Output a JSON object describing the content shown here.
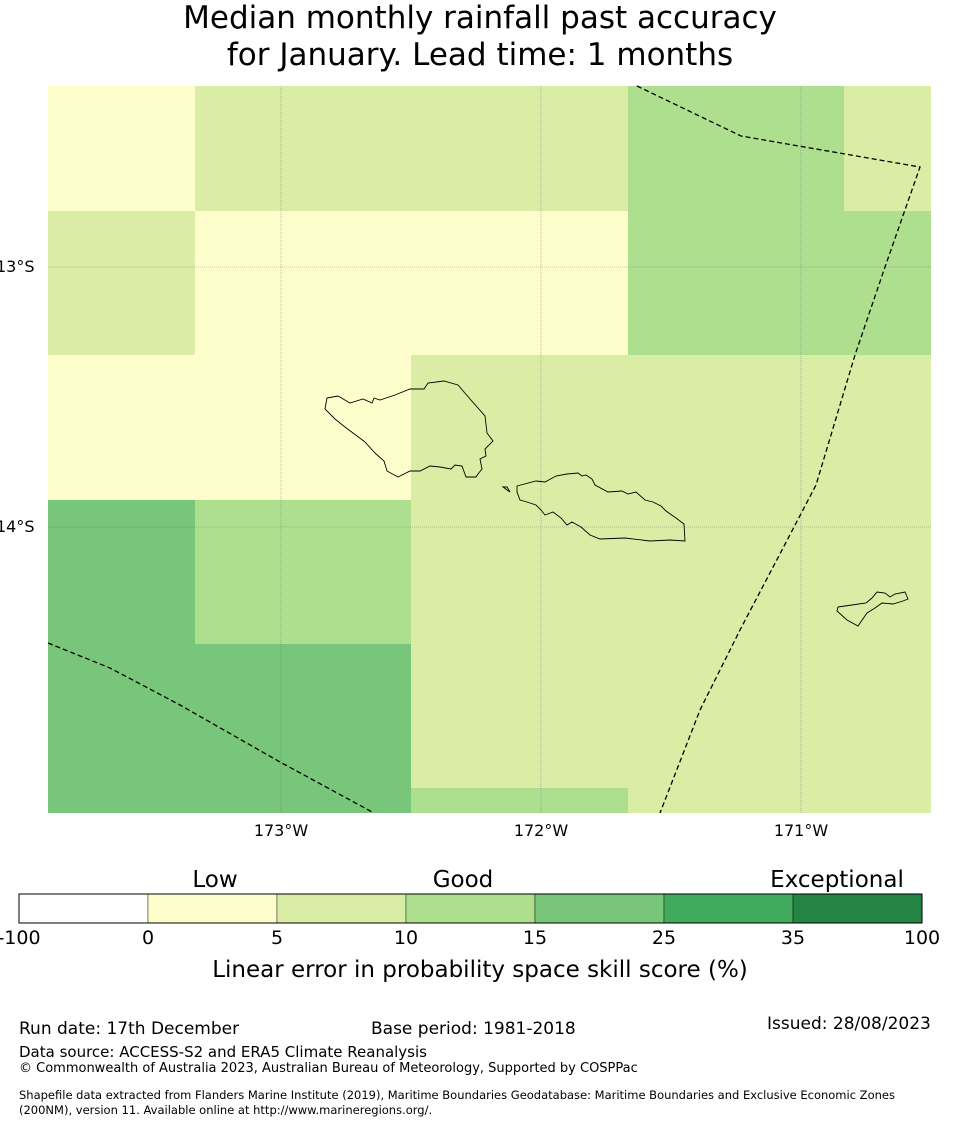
{
  "title": {
    "line1": "Median monthly rainfall past accuracy",
    "line2": "for January. Lead time: 1 months"
  },
  "map": {
    "lat_labels": [
      "13°S",
      "14°S"
    ],
    "lon_labels": [
      "173°W",
      "172°W",
      "171°W"
    ],
    "palette": {
      "0-5": "#fefecc",
      "5-10": "#d9eea4",
      "10-15": "#addf8e",
      "15-25": "#78c679",
      "25-35": "#41ab5d",
      "35-100": "#238443"
    },
    "grid_skill_percent": [
      [
        "0-5",
        "5-10",
        "5-10",
        "10-15",
        "5-10"
      ],
      [
        "5-10",
        "0-5",
        "0-5",
        "10-15",
        "10-15"
      ],
      [
        "0-5",
        "0-5",
        "5-10",
        "5-10",
        "5-10"
      ],
      [
        "15-25",
        "10-15",
        "5-10",
        "5-10",
        "5-10"
      ],
      [
        "15-25",
        "15-25",
        "5-10",
        "5-10",
        "5-10"
      ],
      [
        "15-25",
        "15-25",
        "10-15",
        "5-10",
        "5-10"
      ]
    ]
  },
  "colorbar": {
    "category_labels": [
      "Low",
      "Good",
      "Exceptional"
    ],
    "ticks": [
      "-100",
      "0",
      "5",
      "10",
      "15",
      "25",
      "35",
      "100"
    ],
    "colors": [
      "#ffffff",
      "#fefecc",
      "#d9eea4",
      "#addf8e",
      "#78c679",
      "#41ab5d",
      "#238443"
    ],
    "axis_label": "Linear error in probability space skill score (%)"
  },
  "footer": {
    "run_date": "Run date: 17th December",
    "base_period": "Base period: 1981-2018",
    "issued": "Issued: 28/08/2023",
    "data_source": "Data source: ACCESS-S2 and ERA5 Climate Reanalysis",
    "copyright": "© Commonwealth of Australia 2023, Australian Bureau of Meteorology, Supported by COSPPac",
    "shapefile_line1": "Shapefile data extracted from Flanders Marine Institute (2019), Maritime Boundaries Geodatabase: Maritime Boundaries and Exclusive Economic Zones",
    "shapefile_line2": "(200NM), version 11. Available online at http://www.marineregions.org/."
  }
}
